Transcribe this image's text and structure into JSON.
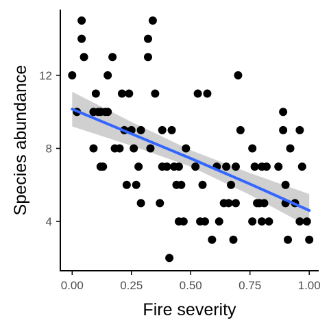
{
  "chart_data": {
    "type": "scatter",
    "title": "",
    "xlabel": "Fire severity",
    "ylabel": "Species abundance",
    "xlim": [
      -0.05,
      1.04
    ],
    "ylim": [
      1.3,
      15.6
    ],
    "grid": false,
    "x_ticks": [
      {
        "value": 0.0,
        "label": "0.00"
      },
      {
        "value": 0.25,
        "label": "0.25"
      },
      {
        "value": 0.5,
        "label": "0.50"
      },
      {
        "value": 0.75,
        "label": "0.75"
      },
      {
        "value": 1.0,
        "label": "1.00"
      }
    ],
    "y_ticks": [
      {
        "value": 4,
        "label": "4"
      },
      {
        "value": 8,
        "label": "8"
      },
      {
        "value": 12,
        "label": "12"
      }
    ],
    "colors": {
      "points": "#000000",
      "fit_line": "#3366ff",
      "ribbon": "#c8c8c8"
    },
    "points": [
      {
        "x": 0.0,
        "y": 12
      },
      {
        "x": 0.02,
        "y": 10
      },
      {
        "x": 0.04,
        "y": 15
      },
      {
        "x": 0.04,
        "y": 14
      },
      {
        "x": 0.05,
        "y": 13
      },
      {
        "x": 0.09,
        "y": 10
      },
      {
        "x": 0.09,
        "y": 8
      },
      {
        "x": 0.1,
        "y": 11
      },
      {
        "x": 0.11,
        "y": 10
      },
      {
        "x": 0.12,
        "y": 10
      },
      {
        "x": 0.12,
        "y": 7
      },
      {
        "x": 0.13,
        "y": 7
      },
      {
        "x": 0.14,
        "y": 10
      },
      {
        "x": 0.15,
        "y": 10
      },
      {
        "x": 0.15,
        "y": 12
      },
      {
        "x": 0.17,
        "y": 13
      },
      {
        "x": 0.18,
        "y": 8
      },
      {
        "x": 0.2,
        "y": 8
      },
      {
        "x": 0.21,
        "y": 11
      },
      {
        "x": 0.22,
        "y": 9
      },
      {
        "x": 0.23,
        "y": 6
      },
      {
        "x": 0.24,
        "y": 11
      },
      {
        "x": 0.25,
        "y": 9
      },
      {
        "x": 0.26,
        "y": 8
      },
      {
        "x": 0.27,
        "y": 6
      },
      {
        "x": 0.28,
        "y": 7
      },
      {
        "x": 0.29,
        "y": 9
      },
      {
        "x": 0.29,
        "y": 5
      },
      {
        "x": 0.32,
        "y": 14
      },
      {
        "x": 0.32,
        "y": 13
      },
      {
        "x": 0.33,
        "y": 8
      },
      {
        "x": 0.34,
        "y": 15
      },
      {
        "x": 0.35,
        "y": 11
      },
      {
        "x": 0.37,
        "y": 5
      },
      {
        "x": 0.38,
        "y": 9
      },
      {
        "x": 0.38,
        "y": 7
      },
      {
        "x": 0.4,
        "y": 7
      },
      {
        "x": 0.41,
        "y": 2
      },
      {
        "x": 0.42,
        "y": 9
      },
      {
        "x": 0.43,
        "y": 7
      },
      {
        "x": 0.44,
        "y": 6
      },
      {
        "x": 0.45,
        "y": 7
      },
      {
        "x": 0.45,
        "y": 4
      },
      {
        "x": 0.46,
        "y": 6
      },
      {
        "x": 0.47,
        "y": 4
      },
      {
        "x": 0.48,
        "y": 8
      },
      {
        "x": 0.52,
        "y": 7
      },
      {
        "x": 0.53,
        "y": 11
      },
      {
        "x": 0.54,
        "y": 4
      },
      {
        "x": 0.55,
        "y": 6
      },
      {
        "x": 0.56,
        "y": 4
      },
      {
        "x": 0.57,
        "y": 11
      },
      {
        "x": 0.59,
        "y": 3
      },
      {
        "x": 0.61,
        "y": 7
      },
      {
        "x": 0.62,
        "y": 4
      },
      {
        "x": 0.64,
        "y": 5
      },
      {
        "x": 0.65,
        "y": 7
      },
      {
        "x": 0.66,
        "y": 5
      },
      {
        "x": 0.67,
        "y": 6
      },
      {
        "x": 0.68,
        "y": 3
      },
      {
        "x": 0.69,
        "y": 7
      },
      {
        "x": 0.69,
        "y": 5
      },
      {
        "x": 0.7,
        "y": 12
      },
      {
        "x": 0.71,
        "y": 9
      },
      {
        "x": 0.76,
        "y": 8
      },
      {
        "x": 0.76,
        "y": 4
      },
      {
        "x": 0.77,
        "y": 7
      },
      {
        "x": 0.78,
        "y": 5
      },
      {
        "x": 0.79,
        "y": 5
      },
      {
        "x": 0.8,
        "y": 7
      },
      {
        "x": 0.8,
        "y": 4
      },
      {
        "x": 0.81,
        "y": 5
      },
      {
        "x": 0.82,
        "y": 7
      },
      {
        "x": 0.83,
        "y": 4
      },
      {
        "x": 0.87,
        "y": 7
      },
      {
        "x": 0.89,
        "y": 10
      },
      {
        "x": 0.89,
        "y": 9
      },
      {
        "x": 0.9,
        "y": 6
      },
      {
        "x": 0.9,
        "y": 5
      },
      {
        "x": 0.91,
        "y": 3
      },
      {
        "x": 0.92,
        "y": 8
      },
      {
        "x": 0.94,
        "y": 5
      },
      {
        "x": 0.96,
        "y": 9
      },
      {
        "x": 0.96,
        "y": 4
      },
      {
        "x": 0.97,
        "y": 7
      },
      {
        "x": 0.99,
        "y": 4
      },
      {
        "x": 1.0,
        "y": 3
      }
    ],
    "fit": {
      "x": [
        0.0,
        0.25,
        0.5,
        0.75,
        1.0
      ],
      "y": [
        10.15,
        8.8,
        7.45,
        6.05,
        4.6
      ],
      "lower": [
        9.2,
        8.15,
        7.0,
        5.45,
        3.7
      ],
      "upper": [
        11.1,
        9.45,
        7.9,
        6.65,
        5.5
      ]
    }
  }
}
